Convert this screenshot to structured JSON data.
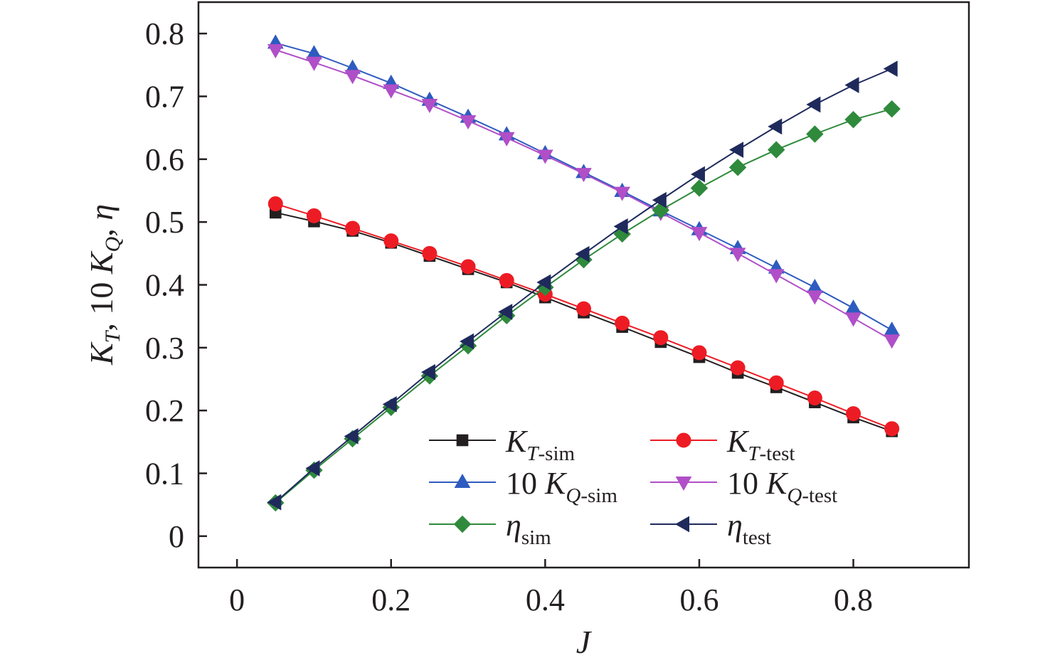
{
  "chart_data": {
    "type": "line",
    "title": "",
    "xlabel": "J",
    "ylabel": "K_T, 10 K_Q, η",
    "ylabel_parts": [
      "K",
      "T",
      ", 10 ",
      "K",
      "Q",
      ", ",
      "η"
    ],
    "xlim": [
      -0.05,
      0.95
    ],
    "ylim": [
      -0.05,
      0.85
    ],
    "xticks": [
      0,
      0.2,
      0.4,
      0.6,
      0.8
    ],
    "xtick_labels": [
      "0",
      "0.2",
      "0.4",
      "0.6",
      "0.8"
    ],
    "yticks": [
      0,
      0.1,
      0.2,
      0.3,
      0.4,
      0.5,
      0.6,
      0.7,
      0.8
    ],
    "ytick_labels": [
      "0",
      "0.1",
      "0.2",
      "0.3",
      "0.4",
      "0.5",
      "0.6",
      "0.7",
      "0.8"
    ],
    "grid": false,
    "legend_position": "lower-right",
    "x": [
      0.05,
      0.1,
      0.15,
      0.2,
      0.25,
      0.3,
      0.35,
      0.4,
      0.45,
      0.5,
      0.55,
      0.6,
      0.65,
      0.7,
      0.75,
      0.8,
      0.85
    ],
    "series": [
      {
        "name": "K_T-sim",
        "label_prefix": "",
        "label_main": "K",
        "label_sub_italic": "T",
        "label_sub": "-sim",
        "color": "#231f20",
        "marker": "square",
        "values": [
          0.515,
          0.501,
          0.486,
          0.467,
          0.446,
          0.425,
          0.404,
          0.38,
          0.356,
          0.333,
          0.309,
          0.285,
          0.26,
          0.237,
          0.213,
          0.189,
          0.167
        ]
      },
      {
        "name": "K_T-test",
        "label_prefix": "",
        "label_main": "K",
        "label_sub_italic": "T",
        "label_sub": "-test",
        "color": "#ed1c24",
        "marker": "circle",
        "values": [
          0.529,
          0.51,
          0.49,
          0.47,
          0.45,
          0.429,
          0.407,
          0.385,
          0.362,
          0.339,
          0.316,
          0.292,
          0.268,
          0.244,
          0.22,
          0.195,
          0.171
        ]
      },
      {
        "name": "10 K_Q-sim",
        "label_prefix": "10 ",
        "label_main": "K",
        "label_sub_italic": "Q",
        "label_sub": "-sim",
        "color": "#2e5bbf",
        "marker": "triangle-up",
        "values": [
          0.785,
          0.768,
          0.745,
          0.721,
          0.694,
          0.667,
          0.639,
          0.609,
          0.579,
          0.549,
          0.518,
          0.488,
          0.458,
          0.427,
          0.396,
          0.363,
          0.328
        ]
      },
      {
        "name": "10 K_Q-test",
        "label_prefix": "10 ",
        "label_main": "K",
        "label_sub_italic": "Q",
        "label_sub": "-test",
        "color": "#b04fc8",
        "marker": "triangle-down",
        "values": [
          0.774,
          0.754,
          0.733,
          0.71,
          0.687,
          0.661,
          0.634,
          0.606,
          0.577,
          0.547,
          0.515,
          0.483,
          0.45,
          0.416,
          0.382,
          0.347,
          0.312
        ]
      },
      {
        "name": "η_sim",
        "label_prefix": "",
        "label_main": "η",
        "label_sub_italic": "",
        "label_sub": "sim",
        "color": "#2f8a3c",
        "marker": "diamond",
        "values": [
          0.053,
          0.105,
          0.155,
          0.205,
          0.255,
          0.303,
          0.351,
          0.396,
          0.44,
          0.481,
          0.519,
          0.554,
          0.587,
          0.615,
          0.64,
          0.663,
          0.68
        ]
      },
      {
        "name": "η_test",
        "label_prefix": "",
        "label_main": "η",
        "label_sub_italic": "",
        "label_sub": "test",
        "color": "#1f2a5c",
        "marker": "triangle-left",
        "values": [
          0.054,
          0.108,
          0.159,
          0.21,
          0.261,
          0.31,
          0.357,
          0.404,
          0.449,
          0.493,
          0.535,
          0.576,
          0.615,
          0.652,
          0.687,
          0.718,
          0.744
        ]
      }
    ]
  }
}
